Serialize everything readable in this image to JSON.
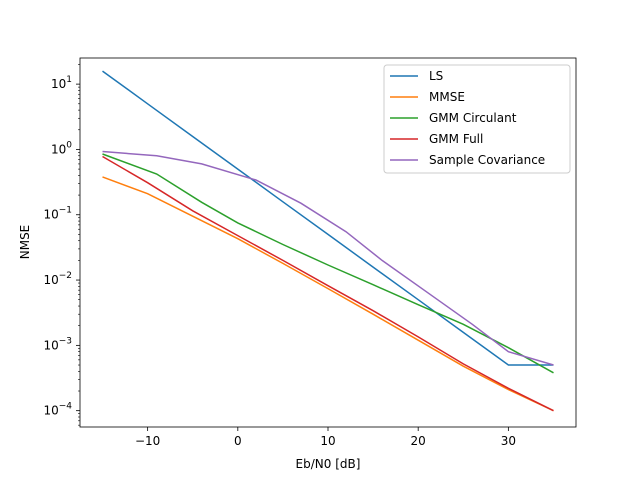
{
  "chart_data": {
    "type": "line",
    "title": "",
    "xlabel": "Eb/N0 [dB]",
    "ylabel": "NMSE",
    "xlim": [
      -17.5,
      37.5
    ],
    "ylim_log10": [
      -4.25,
      1.4
    ],
    "y_scale": "log",
    "grid": false,
    "legend_placement": "top-right",
    "x_ticks": [
      -10,
      0,
      10,
      20,
      30
    ],
    "x_tick_labels": [
      "−10",
      "0",
      "10",
      "20",
      "30"
    ],
    "y_ticks_exp": [
      -4,
      -3,
      -2,
      -1,
      0,
      1
    ],
    "series": [
      {
        "name": "LS",
        "color": "#1f77b4",
        "x": [
          -15,
          -10,
          -5,
          0,
          5,
          10,
          15,
          20,
          25,
          30,
          35
        ],
        "y": [
          15.8,
          5.0,
          1.58,
          0.5,
          0.158,
          0.05,
          0.0158,
          0.005,
          0.00158,
          0.0005,
          0.0005
        ]
      },
      {
        "name": "MMSE",
        "color": "#ff7f0e",
        "x": [
          -15,
          -10,
          -5,
          0,
          5,
          10,
          15,
          20,
          25,
          30,
          35
        ],
        "y": [
          0.38,
          0.21,
          0.095,
          0.043,
          0.018,
          0.0074,
          0.003,
          0.0012,
          0.00048,
          0.00021,
          0.0001
        ]
      },
      {
        "name": "GMM Circulant",
        "color": "#2ca02c",
        "x": [
          -15,
          -9,
          -4,
          0,
          5,
          10,
          15,
          20,
          25,
          30,
          35
        ],
        "y": [
          0.85,
          0.42,
          0.155,
          0.075,
          0.035,
          0.017,
          0.0085,
          0.0042,
          0.0021,
          0.00092,
          0.00038
        ]
      },
      {
        "name": "GMM Full",
        "color": "#d62728",
        "x": [
          -15,
          -10,
          -5,
          0,
          5,
          10,
          15,
          20,
          25,
          30,
          35
        ],
        "y": [
          0.78,
          0.31,
          0.115,
          0.048,
          0.02,
          0.0082,
          0.0034,
          0.00135,
          0.00052,
          0.00022,
          0.0001
        ]
      },
      {
        "name": "Sample Covariance",
        "color": "#9467bd",
        "x": [
          -15,
          -9,
          -4,
          2,
          7,
          12,
          16,
          21,
          26,
          30,
          35
        ],
        "y": [
          0.93,
          0.8,
          0.6,
          0.34,
          0.15,
          0.055,
          0.02,
          0.0065,
          0.0021,
          0.0008,
          0.0005
        ]
      }
    ]
  }
}
